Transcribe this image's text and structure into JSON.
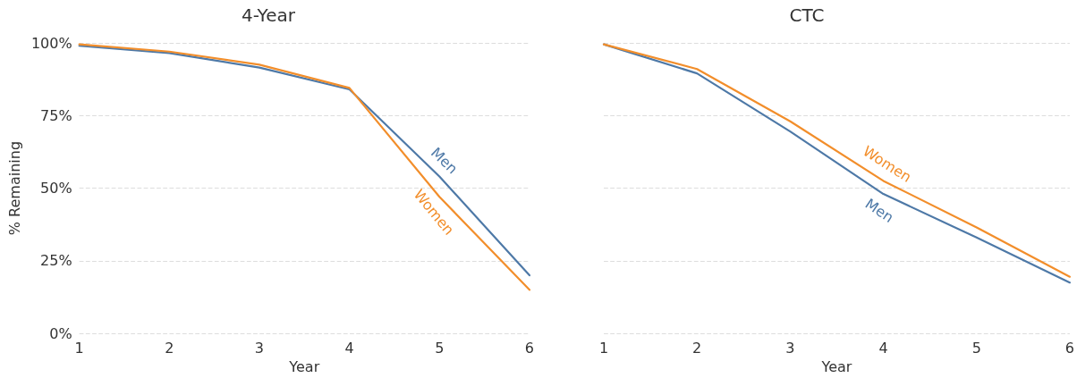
{
  "chart_data": [
    {
      "type": "line",
      "title": "4-Year",
      "xlabel": "Year",
      "ylabel": "% Remaining",
      "x": [
        1,
        2,
        3,
        4,
        5,
        6
      ],
      "xlim": [
        1,
        6
      ],
      "xticks": [
        1,
        2,
        3,
        4,
        5,
        6
      ],
      "ylim": [
        0,
        100
      ],
      "yticks": [
        {
          "value": 0,
          "label": "0%"
        },
        {
          "value": 25,
          "label": "25%"
        },
        {
          "value": 50,
          "label": "50%"
        },
        {
          "value": 75,
          "label": "75%"
        },
        {
          "value": 100,
          "label": "100%"
        }
      ],
      "grid": "y",
      "legend": false,
      "marker": "none",
      "line_style": "solid",
      "series": [
        {
          "name": "Men",
          "color": "#4e79a7",
          "values": [
            99,
            96.5,
            91.5,
            84,
            54,
            20
          ]
        },
        {
          "name": "Women",
          "color": "#f28e2b",
          "values": [
            99.5,
            97,
            92.5,
            84.5,
            47,
            15
          ]
        }
      ]
    },
    {
      "type": "line",
      "title": "CTC",
      "xlabel": "Year",
      "x": [
        1,
        2,
        3,
        4,
        5,
        6
      ],
      "xlim": [
        1,
        6
      ],
      "xticks": [
        1,
        2,
        3,
        4,
        5,
        6
      ],
      "ylim": [
        0,
        100
      ],
      "yticks": [
        0,
        25,
        50,
        75,
        100
      ],
      "tick_labels": "x",
      "grid": "y",
      "legend": false,
      "marker": "none",
      "line_style": "solid",
      "series": [
        {
          "name": "Men",
          "color": "#4e79a7",
          "values": [
            99.5,
            89.5,
            69.5,
            48,
            33,
            17.5
          ]
        },
        {
          "name": "Women",
          "color": "#f28e2b",
          "values": [
            99.5,
            91,
            73,
            52.5,
            36.5,
            19.5
          ]
        }
      ]
    }
  ]
}
